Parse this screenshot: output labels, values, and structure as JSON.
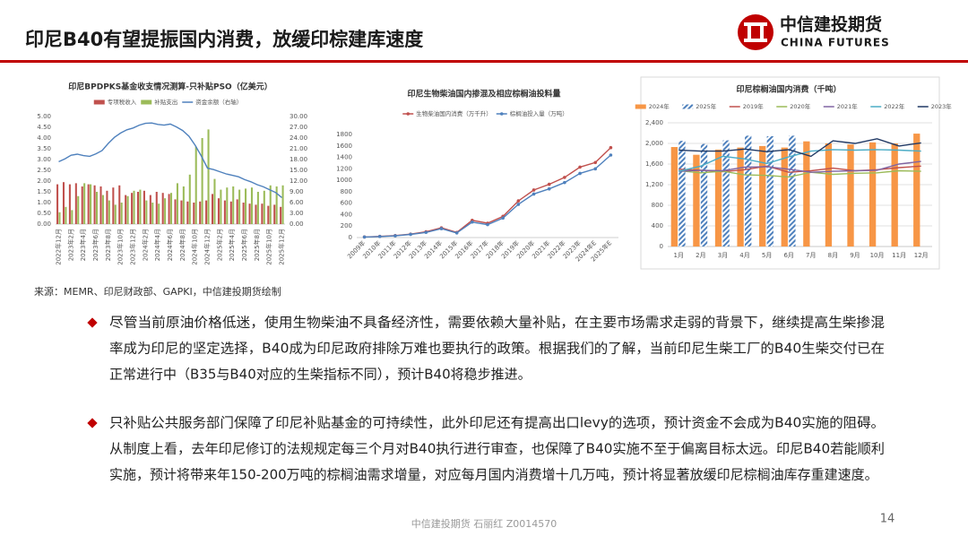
{
  "header": {
    "title": "印尼B40有望提振国内消费，放缓印棕建库速度",
    "logo_cn": "中信建投期货",
    "logo_en": "CHINA FUTURES"
  },
  "chart_data": [
    {
      "type": "bar",
      "title": "印尼BPDPKS基金收支情况测算-只补贴PSO（亿美元）",
      "categories": [
        "2022年12月",
        null,
        "2023年2月",
        null,
        "2023年4月",
        null,
        "2023年6月",
        null,
        "2023年8月",
        null,
        "2023年10月",
        null,
        "2023年12月",
        null,
        "2024年2月",
        null,
        "2024年4月",
        null,
        "2024年6月",
        null,
        "2024年8月",
        null,
        "2024年10月",
        null,
        "2024年12月",
        null,
        "2025年2月",
        null,
        "2025年4月",
        null,
        "2025年6月",
        null,
        "2025年8月",
        null,
        "2025年10月",
        null,
        "2025年12月"
      ],
      "series": [
        {
          "name": "专项税收入",
          "color": "#c0504d",
          "type": "bar",
          "values": [
            1.85,
            1.95,
            1.85,
            1.9,
            1.75,
            1.85,
            1.8,
            1.75,
            1.55,
            1.7,
            1.8,
            1.35,
            1.45,
            1.5,
            1.55,
            1.35,
            1.5,
            1.45,
            1.4,
            1.15,
            1.1,
            1.05,
            1.0,
            1.05,
            1.1,
            1.4,
            1.2,
            1.1,
            1.05,
            1.15,
            1.0,
            0.95,
            0.9,
            0.95,
            0.85,
            0.9,
            0.8
          ]
        },
        {
          "name": "补贴支出",
          "color": "#9bbb59",
          "type": "bar",
          "values": [
            0.55,
            0.8,
            0.65,
            1.3,
            1.9,
            1.85,
            1.5,
            1.35,
            1.1,
            0.9,
            1.0,
            1.3,
            1.55,
            1.6,
            1.1,
            1.0,
            0.95,
            1.2,
            1.45,
            1.9,
            1.75,
            2.3,
            3.6,
            4.0,
            4.4,
            2.1,
            1.6,
            1.7,
            1.75,
            1.6,
            1.65,
            1.7,
            1.5,
            1.55,
            1.8,
            1.75,
            1.8
          ]
        },
        {
          "name": "资金余额（右轴）",
          "color": "#4f81bd",
          "type": "line",
          "axis": "y2",
          "values": [
            17.4,
            18.2,
            19.2,
            19.5,
            19.1,
            18.9,
            19.6,
            20.5,
            22.5,
            24.2,
            25.4,
            26.3,
            26.8,
            27.6,
            28.1,
            28.2,
            27.8,
            27.6,
            27.9,
            27.1,
            26.1,
            24.5,
            22.0,
            19.0,
            15.6,
            15.2,
            14.6,
            14.0,
            13.6,
            13.2,
            12.4,
            11.8,
            11.0,
            10.4,
            9.6,
            8.8,
            7.4
          ]
        }
      ],
      "ylim": [
        0,
        5
      ],
      "yticks": [
        {
          "value": 0,
          "label": "0.00"
        },
        {
          "value": 0.5,
          "label": "0.50"
        },
        {
          "value": 1,
          "label": "1.00"
        },
        {
          "value": 1.5,
          "label": "1.50"
        },
        {
          "value": 2,
          "label": "2.00"
        },
        {
          "value": 2.5,
          "label": "2.50"
        },
        {
          "value": 3,
          "label": "3.00"
        },
        {
          "value": 3.5,
          "label": "3.50"
        },
        {
          "value": 4,
          "label": "4.00"
        },
        {
          "value": 4.5,
          "label": "4.50"
        },
        {
          "value": 5,
          "label": "5.00"
        }
      ],
      "y2lim": [
        0,
        30
      ],
      "y2ticks": [
        {
          "value": 0,
          "label": "0.00"
        },
        {
          "value": 3,
          "label": "3.00"
        },
        {
          "value": 6,
          "label": "6.00"
        },
        {
          "value": 9,
          "label": "9.00"
        },
        {
          "value": 12,
          "label": "12.00"
        },
        {
          "value": 15,
          "label": "15.00"
        },
        {
          "value": 18,
          "label": "18.00"
        },
        {
          "value": 21,
          "label": "21.00"
        },
        {
          "value": 24,
          "label": "24.00"
        },
        {
          "value": 27,
          "label": "27.00"
        },
        {
          "value": 30,
          "label": "30.00"
        }
      ],
      "grid": false,
      "legend": "top"
    },
    {
      "type": "line",
      "title": "印尼生物柴油国内掺混及相应棕榈油投料量",
      "categories": [
        "2009年",
        "2010年",
        "2011年",
        "2012年",
        "2013年",
        "2014年",
        "2015年",
        "2016年",
        "2017年",
        "2018年",
        "2019年",
        "2020年",
        "2021年",
        "2022年",
        "2023年",
        "2024年E",
        "2025年E"
      ],
      "series": [
        {
          "name": "生物柴油国内消费（万千升）",
          "color": "#c0504d",
          "markers": true,
          "values": [
            10,
            20,
            35,
            60,
            100,
            170,
            90,
            300,
            250,
            370,
            640,
            830,
            930,
            1050,
            1230,
            1310,
            1570
          ]
        },
        {
          "name": "棕榈油投入量（万吨）",
          "color": "#4f81bd",
          "markers": true,
          "values": [
            9,
            18,
            30,
            55,
            90,
            155,
            80,
            270,
            225,
            340,
            580,
            760,
            850,
            960,
            1120,
            1200,
            1440
          ]
        }
      ],
      "ylim": [
        0,
        1800
      ],
      "yticks": [
        0,
        200,
        400,
        600,
        800,
        1000,
        1200,
        1400,
        1600,
        1800
      ],
      "grid": false,
      "legend": "top"
    },
    {
      "type": "bar",
      "title": "印尼棕榈油国内消费（千吨）",
      "categories": [
        "1月",
        "2月",
        "3月",
        "4月",
        "5月",
        "6月",
        "7月",
        "8月",
        "9月",
        "10月",
        "11月",
        "12月"
      ],
      "series": [
        {
          "name": "2024年",
          "color": "#f79646",
          "type": "bar",
          "values": [
            1930,
            1780,
            1880,
            1920,
            1950,
            1920,
            2040,
            2000,
            1980,
            2020,
            2000,
            2190
          ]
        },
        {
          "name": "2025年",
          "color": "#4f81bd",
          "type": "bar",
          "pattern": "hatch",
          "values": [
            2050,
            1990,
            2060,
            2150,
            2140,
            2150,
            null,
            null,
            null,
            null,
            null,
            null
          ]
        },
        {
          "name": "2019年",
          "color": "#c0504d",
          "type": "line",
          "values": [
            1500,
            1480,
            1450,
            1490,
            1560,
            1440,
            1470,
            1520,
            1470,
            1490,
            1530,
            1560
          ]
        },
        {
          "name": "2020年",
          "color": "#9bbb59",
          "type": "line",
          "values": [
            1470,
            1430,
            1460,
            1390,
            1380,
            1350,
            1440,
            1400,
            1420,
            1430,
            1470,
            1460
          ]
        },
        {
          "name": "2021年",
          "color": "#8064a2",
          "type": "line",
          "values": [
            1460,
            1480,
            1470,
            1540,
            1550,
            1500,
            1440,
            1460,
            1470,
            1480,
            1600,
            1650
          ]
        },
        {
          "name": "2022年",
          "color": "#4bacc6",
          "type": "line",
          "values": [
            1460,
            1560,
            1750,
            1700,
            1610,
            1740,
            1850,
            1880,
            1870,
            1880,
            1870,
            1850
          ]
        },
        {
          "name": "2023年",
          "color": "#1f3864",
          "type": "line",
          "values": [
            1870,
            1850,
            1850,
            1890,
            1840,
            1880,
            1750,
            2050,
            2000,
            2090,
            1950,
            2010
          ]
        }
      ],
      "ylim": [
        0,
        2400
      ],
      "yticks": [
        0,
        400,
        800,
        {
          "value": 1200,
          "label": "1,200"
        },
        {
          "value": 1600,
          "label": "1,600"
        },
        {
          "value": 2000,
          "label": "2,000"
        },
        {
          "value": 2400,
          "label": "2,400"
        }
      ],
      "grid": true,
      "legend": "top"
    }
  ],
  "source": "来源：MEMR、印尼财政部、GAPKI，中信建投期货绘制",
  "bullets": [
    [
      "尽管当前原油价格低迷，使用生物柴油不具备经济性，需要依赖大量补贴，在主要市场需求走弱的背景下，继续提高生柴掺混",
      "率成为印尼的坚定选择，B40成为印尼政府排除万难也要执行的政策。根据我们的了解，当前印尼生柴工厂的B40生柴交付已在",
      "正常进行中（B35与B40对应的生柴指标不同），预计B40将稳步推进。"
    ],
    [
      "只补贴公共服务部门保障了印尼补贴基金的可持续性，此外印尼还有提高出口levy的选项，预计资金不会成为B40实施的阻碍。",
      "从制度上看，去年印尼修订的法规规定每三个月对B40执行进行审查，也保障了B40实施不至于偏离目标太远。印尼B40若能顺利",
      "实施，预计将带来年150-200万吨的棕榈油需求增量，对应每月国内消费增十几万吨，预计将显著放缓印尼棕榈油库存重建速度。"
    ]
  ],
  "footer": {
    "text": "中信建投期货 石丽红 Z0014570",
    "page": 14
  }
}
